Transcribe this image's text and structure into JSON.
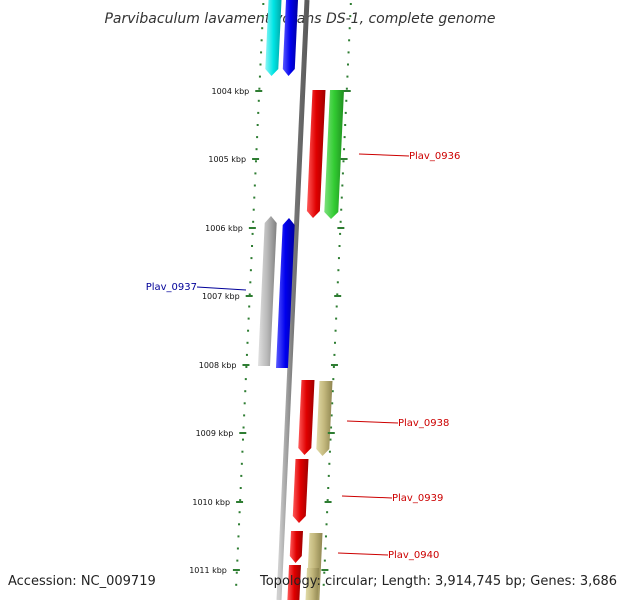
{
  "title": "Parvibaculum lavamentivorans DS-1, complete genome",
  "footer": {
    "accession": "Accession: NC_009719",
    "info": "Topology: circular; Length: 3,914,745 bp; Genes: 3,686"
  },
  "colors": {
    "dots": "#2e7d32",
    "backbone": "#888888",
    "red": "#e00000",
    "green": "#33cc33",
    "blue": "#0000ee",
    "cyan": "#00e5e5",
    "gray": "#aaaaaa",
    "khaki": "#bdb37a",
    "label_red": "#cc0000",
    "label_blue": "#000099"
  },
  "ticks": [
    {
      "label": "1004 kbp"
    },
    {
      "label": "1005 kbp"
    },
    {
      "label": "1006 kbp"
    },
    {
      "label": "1007 kbp"
    },
    {
      "label": "1008 kbp"
    },
    {
      "label": "1009 kbp"
    },
    {
      "label": "1010 kbp"
    },
    {
      "label": "1011 kbp"
    }
  ],
  "genes": [
    {
      "strand": "forward",
      "color": "red",
      "label": ""
    },
    {
      "strand": "forward",
      "color": "green",
      "label": "Plav_0936"
    },
    {
      "strand": "reverse",
      "color": "gray",
      "label": ""
    },
    {
      "strand": "reverse",
      "color": "blue",
      "label": "Plav_0937"
    },
    {
      "strand": "forward",
      "color": "red",
      "label": ""
    },
    {
      "strand": "forward",
      "color": "khaki",
      "label": "Plav_0938"
    },
    {
      "strand": "forward",
      "color": "red",
      "label": "Plav_0939"
    },
    {
      "strand": "forward",
      "color": "red",
      "label": ""
    },
    {
      "strand": "forward",
      "color": "khaki",
      "label": "Plav_0940"
    },
    {
      "strand": "forward",
      "color": "cyan",
      "label": ""
    },
    {
      "strand": "forward",
      "color": "blue",
      "label": ""
    },
    {
      "strand": "forward",
      "color": "red",
      "label": ""
    },
    {
      "strand": "forward",
      "color": "khaki",
      "label": ""
    }
  ]
}
